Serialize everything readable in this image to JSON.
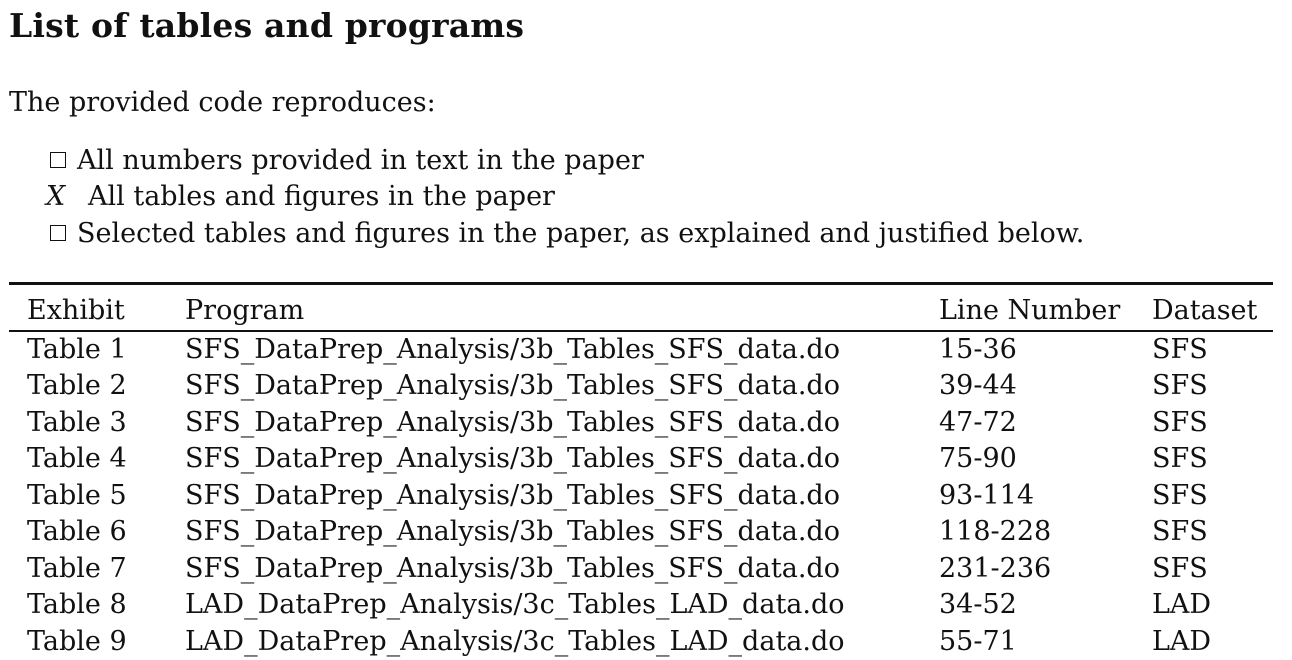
{
  "title": "List of tables and programs",
  "intro": "The provided code reproduces:",
  "checklist": [
    {
      "mark": "",
      "label": "All numbers provided in text in the paper"
    },
    {
      "mark": "X",
      "label": "All tables and figures in the paper"
    },
    {
      "mark": "",
      "label": "Selected tables and figures in the paper, as explained and justified below."
    }
  ],
  "table": {
    "headers": [
      "Exhibit",
      "Program",
      "Line Number",
      "Dataset"
    ],
    "rows": [
      [
        "Table 1",
        "SFS_DataPrep_Analysis/3b_Tables_SFS_data.do",
        "15-36",
        "SFS"
      ],
      [
        "Table 2",
        "SFS_DataPrep_Analysis/3b_Tables_SFS_data.do",
        "39-44",
        "SFS"
      ],
      [
        "Table 3",
        "SFS_DataPrep_Analysis/3b_Tables_SFS_data.do",
        "47-72",
        "SFS"
      ],
      [
        "Table 4",
        "SFS_DataPrep_Analysis/3b_Tables_SFS_data.do",
        "75-90",
        "SFS"
      ],
      [
        "Table 5",
        "SFS_DataPrep_Analysis/3b_Tables_SFS_data.do",
        "93-114",
        "SFS"
      ],
      [
        "Table 6",
        "SFS_DataPrep_Analysis/3b_Tables_SFS_data.do",
        "118-228",
        "SFS"
      ],
      [
        "Table 7",
        "SFS_DataPrep_Analysis/3b_Tables_SFS_data.do",
        "231-236",
        "SFS"
      ],
      [
        "Table 8",
        "LAD_DataPrep_Analysis/3c_Tables_LAD_data.do",
        "34-52",
        "LAD"
      ],
      [
        "Table 9",
        "LAD_DataPrep_Analysis/3c_Tables_LAD_data.do",
        "55-71",
        "LAD"
      ]
    ]
  }
}
